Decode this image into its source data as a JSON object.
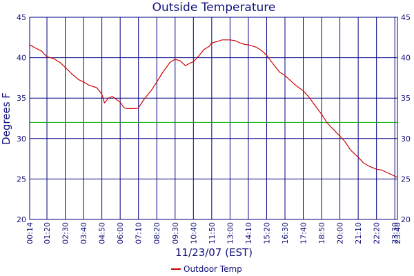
{
  "chart_data": {
    "type": "line",
    "title": "Outside Temperature",
    "xlabel": "11/23/07 (EST)",
    "ylabel": "Degrees F",
    "ylim": [
      20,
      45
    ],
    "yticks": [
      20,
      25,
      30,
      35,
      40,
      45
    ],
    "xlim_minutes": [
      14,
      1420
    ],
    "xticks": [
      "00:14",
      "01:20",
      "02:30",
      "03:40",
      "04:50",
      "06:00",
      "07:10",
      "08:20",
      "09:30",
      "10:40",
      "11:50",
      "13:00",
      "14:10",
      "15:20",
      "16:30",
      "17:40",
      "18:50",
      "20:00",
      "21:10",
      "22:20",
      "23:30",
      "23:40"
    ],
    "grid": true,
    "legend_position": "bottom-center",
    "colors": {
      "series": "#cc0000",
      "reference": "#00aa00",
      "grid": "#000080",
      "text": "#10107a"
    },
    "reference_line": {
      "y": 32,
      "color": "#00aa00"
    },
    "series": [
      {
        "name": "Outdoor Temp",
        "color": "#cc0000",
        "x": [
          "00:14",
          "00:30",
          "01:00",
          "01:20",
          "01:45",
          "02:10",
          "02:30",
          "02:55",
          "03:20",
          "03:40",
          "04:00",
          "04:30",
          "04:50",
          "05:00",
          "05:15",
          "05:30",
          "06:00",
          "06:15",
          "06:30",
          "07:00",
          "07:10",
          "07:30",
          "08:00",
          "08:20",
          "08:45",
          "09:10",
          "09:30",
          "09:50",
          "10:10",
          "10:25",
          "10:40",
          "11:00",
          "11:20",
          "11:40",
          "11:50",
          "12:10",
          "12:30",
          "13:00",
          "13:20",
          "13:40",
          "14:00",
          "14:10",
          "14:40",
          "15:00",
          "15:20",
          "15:50",
          "16:10",
          "16:30",
          "16:50",
          "17:10",
          "17:40",
          "18:00",
          "18:20",
          "18:50",
          "19:10",
          "19:30",
          "20:00",
          "20:20",
          "20:40",
          "21:10",
          "21:30",
          "21:50",
          "22:20",
          "22:40",
          "23:00",
          "23:20",
          "23:40"
        ],
        "values": [
          41.6,
          41.3,
          40.8,
          40.1,
          39.9,
          39.4,
          38.8,
          38.0,
          37.3,
          37.0,
          36.6,
          36.3,
          35.5,
          34.4,
          35.0,
          35.2,
          34.5,
          33.8,
          33.7,
          33.7,
          33.8,
          34.8,
          36.0,
          37.0,
          38.3,
          39.4,
          39.8,
          39.6,
          39.0,
          39.3,
          39.5,
          40.2,
          41.0,
          41.4,
          41.8,
          42.0,
          42.2,
          42.2,
          42.1,
          41.8,
          41.6,
          41.6,
          41.3,
          40.9,
          40.3,
          39.0,
          38.2,
          37.8,
          37.2,
          36.6,
          35.9,
          35.2,
          34.3,
          33.0,
          32.0,
          31.3,
          30.3,
          29.6,
          28.6,
          27.7,
          27.0,
          26.6,
          26.2,
          26.1,
          25.8,
          25.5,
          25.2
        ]
      }
    ]
  }
}
